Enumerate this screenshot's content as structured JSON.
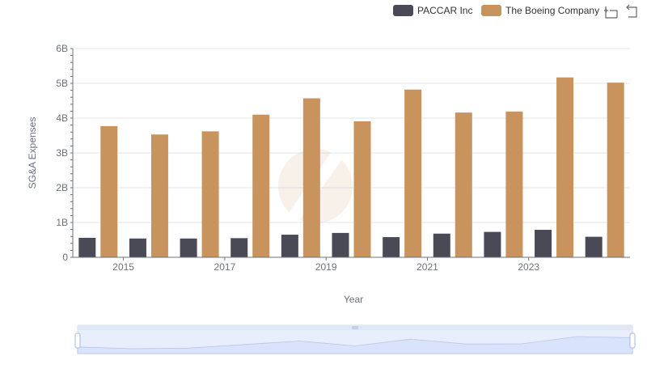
{
  "toolbox": {
    "zoom_icon": "zoom-icon",
    "restore_icon": "restore-icon"
  },
  "colors": {
    "paccar": "#4a4a57",
    "boeing": "#c8935d",
    "grid": "#e0e6f1",
    "axis": "#6e7079",
    "slider_fill": "#dbe4fb",
    "slider_border": "#c5cfe8"
  },
  "chart_data": {
    "type": "bar",
    "xlabel": "Year",
    "ylabel": "SG&A Expenses",
    "ylim": [
      0,
      6000000000
    ],
    "yticks": [
      "0",
      "1B",
      "2B",
      "3B",
      "4B",
      "5B",
      "6B"
    ],
    "x": [
      "2014",
      "2015",
      "2016",
      "2017",
      "2018",
      "2019",
      "2020",
      "2021",
      "2022",
      "2023",
      "2024"
    ],
    "xtick_labels": [
      "2015",
      "2017",
      "2019",
      "2021",
      "2023"
    ],
    "series": [
      {
        "name": "PACCAR Inc",
        "values": [
          560000000,
          540000000,
          540000000,
          550000000,
          650000000,
          700000000,
          580000000,
          680000000,
          730000000,
          790000000,
          590000000
        ]
      },
      {
        "name": "The Boeing Company",
        "values": [
          3770000000,
          3530000000,
          3620000000,
          4100000000,
          4570000000,
          3910000000,
          4820000000,
          4160000000,
          4190000000,
          5170000000,
          5020000000
        ]
      }
    ],
    "legend_position": "top-right",
    "grid": true,
    "datazoom_slider": true
  }
}
